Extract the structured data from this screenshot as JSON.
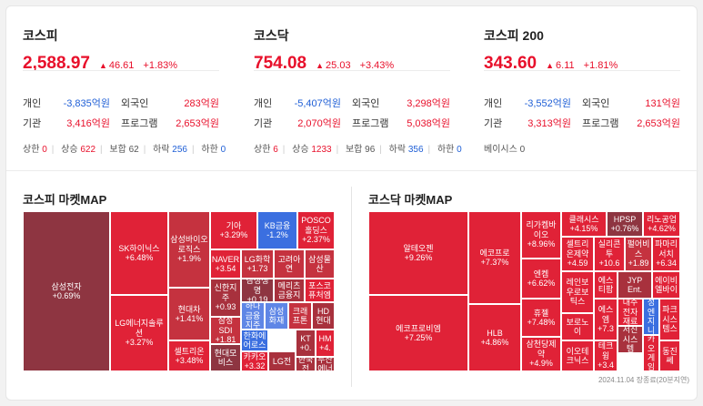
{
  "indices": [
    {
      "name": "코스피",
      "value": "2,588.97",
      "change": "46.61",
      "rate": "+1.83%",
      "investors": [
        {
          "label": "개인",
          "value": "-3,835억원"
        },
        {
          "label": "외국인",
          "value": "283억원"
        },
        {
          "label": "기관",
          "value": "3,416억원"
        },
        {
          "label": "프로그램",
          "value": "2,653억원"
        }
      ],
      "breadth": [
        {
          "label": "상한",
          "value": "0"
        },
        {
          "label": "상승",
          "value": "622"
        },
        {
          "label": "보합",
          "value": "62"
        },
        {
          "label": "하락",
          "value": "256"
        },
        {
          "label": "하한",
          "value": "0"
        }
      ]
    },
    {
      "name": "코스닥",
      "value": "754.08",
      "change": "25.03",
      "rate": "+3.43%",
      "investors": [
        {
          "label": "개인",
          "value": "-5,407억원"
        },
        {
          "label": "외국인",
          "value": "3,298억원"
        },
        {
          "label": "기관",
          "value": "2,070억원"
        },
        {
          "label": "프로그램",
          "value": "5,038억원"
        }
      ],
      "breadth": [
        {
          "label": "상한",
          "value": "6"
        },
        {
          "label": "상승",
          "value": "1233"
        },
        {
          "label": "보합",
          "value": "96"
        },
        {
          "label": "하락",
          "value": "356"
        },
        {
          "label": "하한",
          "value": "0"
        }
      ]
    },
    {
      "name": "코스피 200",
      "value": "343.60",
      "change": "6.11",
      "rate": "+1.81%",
      "investors": [
        {
          "label": "개인",
          "value": "-3,552억원"
        },
        {
          "label": "외국인",
          "value": "131억원"
        },
        {
          "label": "기관",
          "value": "3,313억원"
        },
        {
          "label": "프로그램",
          "value": "2,653억원"
        }
      ],
      "breadth": [
        {
          "label": "베이시스",
          "value": "0"
        }
      ]
    }
  ],
  "maps": [
    {
      "title": "코스피 마켓MAP",
      "tiles": [
        {
          "name": "삼성전자",
          "rate": "+0.69%",
          "color": "#8e3541"
        },
        {
          "name": "SK하이닉스",
          "rate": "+6.48%",
          "color": "#e02237"
        },
        {
          "name": "LG에너지솔루션",
          "rate": "+3.27%",
          "color": "#e02237"
        },
        {
          "name": "삼성바이오로직스",
          "rate": "+1.9%",
          "color": "#c5323f"
        },
        {
          "name": "현대차",
          "rate": "+1.41%",
          "color": "#c5323f"
        },
        {
          "name": "셀트리온",
          "rate": "+3.48%",
          "color": "#e02237"
        },
        {
          "name": "기아",
          "rate": "+3.29%",
          "color": "#e02237"
        },
        {
          "name": "KB금융",
          "rate": "-1.2%",
          "color": "#3b6fe0"
        },
        {
          "name": "POSCO홀딩스",
          "rate": "+2.37%",
          "color": "#e02237"
        },
        {
          "name": "NAVER",
          "rate": "+3.54",
          "color": "#e02237"
        },
        {
          "name": "LG화학",
          "rate": "+1.73",
          "color": "#c5323f"
        },
        {
          "name": "고려아연",
          "rate": "",
          "color": "#c5323f"
        },
        {
          "name": "삼성물산",
          "rate": "",
          "color": "#c5323f"
        },
        {
          "name": "신한지주",
          "rate": "+0.93",
          "color": "#a8313d"
        },
        {
          "name": "삼성생명",
          "rate": "+0.19",
          "color": "#8e3541"
        },
        {
          "name": "메리츠금융지",
          "rate": "",
          "color": "#a8313d"
        },
        {
          "name": "포스코퓨처엠",
          "rate": "",
          "color": "#e02237"
        },
        {
          "name": "하나금융지주",
          "rate": "",
          "color": "#5f86e6"
        },
        {
          "name": "삼성화재",
          "rate": "",
          "color": "#5f86e6"
        },
        {
          "name": "크래프톤",
          "rate": "",
          "color": "#c5323f"
        },
        {
          "name": "HD현대",
          "rate": "",
          "color": "#a8313d"
        },
        {
          "name": "삼성SDI",
          "rate": "+1.81",
          "color": "#c5323f"
        },
        {
          "name": "한화에어로스",
          "rate": "",
          "color": "#3b6fe0"
        },
        {
          "name": "LG전",
          "rate": "",
          "color": "#a8313d"
        },
        {
          "name": "KT",
          "rate": "+0.",
          "color": "#a8313d"
        },
        {
          "name": "HM",
          "rate": "+4.",
          "color": "#e02237"
        },
        {
          "name": "현대모비스",
          "rate": "",
          "color": "#8e3541"
        },
        {
          "name": "카카오",
          "rate": "+3.32",
          "color": "#e02237"
        },
        {
          "name": "한국전",
          "rate": "",
          "color": "#a8313d"
        },
        {
          "name": "두산에너",
          "rate": "",
          "color": "#a8313d"
        }
      ]
    },
    {
      "title": "코스닥 마켓MAP",
      "tiles": [
        {
          "name": "알테오젠",
          "rate": "+9.26%",
          "color": "#e02237"
        },
        {
          "name": "에코프로비엠",
          "rate": "+7.25%",
          "color": "#e02237"
        },
        {
          "name": "에코프로",
          "rate": "+7.37%",
          "color": "#e02237"
        },
        {
          "name": "HLB",
          "rate": "+4.86%",
          "color": "#e02237"
        },
        {
          "name": "리가켐바이오",
          "rate": "+8.96%",
          "color": "#e02237"
        },
        {
          "name": "엔켐",
          "rate": "+6.62%",
          "color": "#e02237"
        },
        {
          "name": "휴젤",
          "rate": "+7.48%",
          "color": "#e02237"
        },
        {
          "name": "삼천당제약",
          "rate": "+4.9%",
          "color": "#e02237"
        },
        {
          "name": "클래시스",
          "rate": "+4.15%",
          "color": "#e02237"
        },
        {
          "name": "HPSP",
          "rate": "+0.76%",
          "color": "#8e3541"
        },
        {
          "name": "리노공업",
          "rate": "+4.62%",
          "color": "#e02237"
        },
        {
          "name": "셀트리온제약",
          "rate": "+4.59",
          "color": "#e02237"
        },
        {
          "name": "실리콘투",
          "rate": "+10.6",
          "color": "#e02237"
        },
        {
          "name": "펄어비스",
          "rate": "+1.89",
          "color": "#c5323f"
        },
        {
          "name": "파마리서치",
          "rate": "+6.34",
          "color": "#e02237"
        },
        {
          "name": "레인보우로보틱스",
          "rate": "",
          "color": "#e02237"
        },
        {
          "name": "에스티팜",
          "rate": "",
          "color": "#e02237"
        },
        {
          "name": "JYP Ent.",
          "rate": "",
          "color": "#a8313d"
        },
        {
          "name": "에이비엘바이",
          "rate": "",
          "color": "#e02237"
        },
        {
          "name": "보로노이",
          "rate": "",
          "color": "#e02237"
        },
        {
          "name": "에스엠",
          "rate": "+7.3",
          "color": "#e02237"
        },
        {
          "name": "대주전자재료",
          "rate": "",
          "color": "#e02237"
        },
        {
          "name": "주성엔지니어",
          "rate": "",
          "color": "#3b6fe0"
        },
        {
          "name": "파크시스템스",
          "rate": "",
          "color": "#e02237"
        },
        {
          "name": "이오테크닉스",
          "rate": "",
          "color": "#e02237"
        },
        {
          "name": "테크윙",
          "rate": "+3.4",
          "color": "#e02237"
        },
        {
          "name": "서진시스템",
          "rate": "",
          "color": "#a8313d"
        },
        {
          "name": "카카오게임즈",
          "rate": "",
          "color": "#e02237"
        },
        {
          "name": "동진쎄",
          "rate": "",
          "color": "#e02237"
        }
      ]
    }
  ],
  "timestamp": "2024.11.04 장종료(20분지연)"
}
